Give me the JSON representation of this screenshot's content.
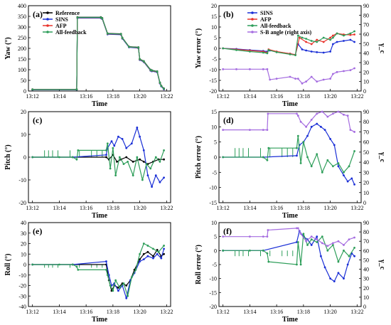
{
  "colors": {
    "Reference": "#000000",
    "SINS": "#1a2fd6",
    "AFP": "#e8322b",
    "All-feedback": "#2e9e5a",
    "S-B angle (right axis)": "#a56de0"
  },
  "chart_data": [
    {
      "type": "line",
      "label": "(a)",
      "ylabel": "Yaw (°)",
      "xlabel": "Time",
      "ylim": [
        0,
        400
      ],
      "yticks": [
        0,
        50,
        100,
        150,
        200,
        250,
        300,
        350,
        400
      ],
      "xticks": [
        "13:12",
        "13:14",
        "13:16",
        "13:18",
        "13:20",
        "13:22"
      ],
      "legend": [
        "Reference",
        "SINS",
        "AFP",
        "All-feedback"
      ],
      "series": [
        {
          "name": "Reference",
          "x": [
            0,
            3.3,
            3.35,
            5.1,
            5.2,
            5.6,
            6.6,
            6.7,
            7.2,
            7.9,
            8.0,
            8.3,
            8.8,
            8.9,
            9.3,
            9.5,
            9.6,
            9.8
          ],
          "y": [
            8,
            8,
            346,
            346,
            342,
            270,
            268,
            250,
            208,
            205,
            150,
            140,
            100,
            97,
            92,
            40,
            25,
            12
          ]
        },
        {
          "name": "SINS",
          "x": [
            0,
            3.3,
            3.35,
            5.1,
            5.2,
            5.6,
            6.6,
            6.7,
            7.2,
            7.9,
            8.0,
            8.3,
            8.8,
            8.9,
            9.3,
            9.5,
            9.6,
            9.8
          ],
          "y": [
            6,
            6,
            342,
            342,
            338,
            266,
            264,
            246,
            205,
            201,
            146,
            136,
            96,
            93,
            88,
            36,
            22,
            8
          ]
        },
        {
          "name": "AFP",
          "x": [
            0,
            3.3,
            3.35,
            5.1,
            5.2,
            5.6,
            6.6,
            6.7,
            7.2,
            7.9,
            8.0,
            8.3,
            8.8,
            8.9,
            9.3,
            9.5,
            9.6,
            9.8
          ],
          "y": [
            7,
            7,
            344,
            344,
            340,
            268,
            266,
            248,
            207,
            203,
            148,
            138,
            98,
            95,
            90,
            38,
            24,
            10
          ]
        },
        {
          "name": "All-feedback",
          "x": [
            0,
            3.3,
            3.35,
            5.1,
            5.2,
            5.6,
            6.6,
            6.7,
            7.2,
            7.9,
            8.0,
            8.3,
            8.8,
            8.9,
            9.3,
            9.5,
            9.6,
            9.8
          ],
          "y": [
            7,
            7,
            345,
            345,
            341,
            269,
            267,
            249,
            207,
            204,
            149,
            139,
            99,
            96,
            91,
            39,
            24,
            11
          ]
        }
      ]
    },
    {
      "type": "line",
      "label": "(b)",
      "ylabel": "Yaw error (°)",
      "y2label": "γ_c",
      "xlabel": "Time",
      "ylim": [
        -20,
        20
      ],
      "yticks": [
        -20,
        -15,
        -10,
        -5,
        0,
        5,
        10,
        15,
        20
      ],
      "y2lim": [
        0,
        90
      ],
      "y2ticks": [
        0,
        10,
        20,
        30,
        40,
        50,
        60,
        70,
        80,
        90
      ],
      "xticks": [
        "13:12",
        "13:14",
        "13:16",
        "13:18",
        "13:20",
        "13:22"
      ],
      "legend": [
        "SINS",
        "AFP",
        "All-feedback",
        "S-B angle (right axis)"
      ],
      "series": [
        {
          "name": "SINS",
          "x": [
            0,
            1,
            2,
            3,
            3.3,
            3.5,
            4,
            5,
            5.4,
            5.6,
            5.9,
            6.2,
            6.6,
            7,
            7.5,
            8,
            8.2,
            8.5,
            9,
            9.5,
            9.8
          ],
          "y": [
            0,
            -0.3,
            -0.8,
            -1.2,
            -1.5,
            -1,
            -1.6,
            -2.5,
            -3,
            2,
            -0.5,
            -1,
            -1.5,
            -1.8,
            -2,
            -1.5,
            2,
            3,
            3.5,
            4,
            3
          ]
        },
        {
          "name": "AFP",
          "x": [
            0,
            1,
            2,
            3,
            3.3,
            3.4,
            4,
            5,
            5.4,
            5.7,
            6.2,
            6.6,
            7,
            7.5,
            8,
            8.2,
            8.5,
            9,
            9.5,
            9.8
          ],
          "y": [
            0,
            -0.5,
            -1,
            -1.5,
            -2,
            -0.5,
            -1.5,
            -2.5,
            -3,
            5,
            3,
            2,
            4,
            3,
            5,
            6,
            7,
            6.5,
            6.3,
            6.5
          ]
        },
        {
          "name": "All-feedback",
          "x": [
            0,
            1,
            2,
            3,
            3.3,
            3.4,
            4,
            5,
            5.4,
            5.6,
            5.9,
            6.2,
            6.6,
            7,
            7.5,
            8,
            8.2,
            8.5,
            9,
            9.5,
            9.8
          ],
          "y": [
            0,
            -0.8,
            -1.5,
            -2,
            -2.3,
            -0.8,
            -1.8,
            -2.8,
            -3.2,
            6,
            5,
            4.5,
            3.5,
            3,
            5,
            4,
            5,
            7,
            6,
            7,
            8
          ]
        },
        {
          "name": "S-B angle (right axis)",
          "axis": "right",
          "x": [
            0,
            1,
            2,
            3,
            3.3,
            3.5,
            4,
            5,
            5.4,
            5.6,
            5.9,
            6.2,
            6.6,
            7,
            7.5,
            8,
            8.2,
            8.5,
            9,
            9.5,
            9.8
          ],
          "y": [
            23,
            23,
            23,
            23,
            23,
            12,
            13,
            15,
            13,
            13,
            8,
            10,
            15,
            10,
            12,
            13,
            18,
            20,
            21,
            22,
            24
          ]
        }
      ]
    },
    {
      "type": "line",
      "label": "(c)",
      "ylabel": "Pitch (°)",
      "xlabel": "Time",
      "ylim": [
        -20,
        20
      ],
      "yticks": [
        -20,
        -10,
        0,
        10,
        20
      ],
      "xticks": [
        "13:12",
        "13:14",
        "13:16",
        "13:18",
        "13:20",
        "13:22"
      ],
      "series": [
        {
          "name": "Reference",
          "x": [
            0,
            3,
            5.5,
            5.7,
            6,
            6.3,
            6.6,
            7,
            7.5,
            8,
            8.3,
            8.6,
            9,
            9.4,
            9.8
          ],
          "y": [
            0,
            0,
            0,
            -1,
            1,
            -2,
            -1,
            0,
            -2,
            -1,
            -2,
            -3,
            -2,
            -1,
            -1
          ]
        },
        {
          "name": "SINS",
          "x": [
            0,
            3,
            5.5,
            5.6,
            5.9,
            6.1,
            6.4,
            6.7,
            7,
            7.4,
            7.8,
            8,
            8.3,
            8.6,
            8.9,
            9.2,
            9.5,
            9.8
          ],
          "y": [
            0,
            0,
            1,
            4,
            7,
            5,
            9,
            8,
            4,
            6,
            13,
            9,
            3,
            -8,
            -13,
            -8,
            -11,
            -9
          ]
        },
        {
          "name": "All-feedback",
          "x": [
            0,
            2,
            3,
            3.3,
            3.4,
            5.5,
            5.6,
            5.8,
            6,
            6.2,
            6.5,
            6.8,
            7.1,
            7.5,
            7.8,
            8.2,
            8.5,
            8.8,
            9.2,
            9.5,
            9.8
          ],
          "y": [
            0,
            0,
            0,
            -1,
            3,
            3,
            6,
            -5,
            4,
            -8,
            0,
            -3,
            -2,
            -8,
            0,
            -10,
            -3,
            -5,
            0,
            -2,
            3
          ]
        }
      ],
      "spikes": {
        "x": [
          0.9,
          1.2,
          1.5,
          1.9,
          2.8,
          3.5,
          4.4,
          4.8,
          5.2
        ],
        "height": [
          3,
          3,
          3,
          3,
          3,
          3,
          3,
          3,
          3
        ]
      }
    },
    {
      "type": "line",
      "label": "(d)",
      "ylabel": "Pitch error (°)",
      "y2label": "γ_c",
      "xlabel": "Time",
      "ylim": [
        -15,
        15
      ],
      "yticks": [
        -15,
        -10,
        -5,
        0,
        5,
        10,
        15
      ],
      "y2lim": [
        0,
        90
      ],
      "y2ticks": [
        0,
        10,
        20,
        30,
        40,
        50,
        60,
        70,
        80,
        90
      ],
      "xticks": [
        "13:12",
        "13:14",
        "13:16",
        "13:18",
        "13:20",
        "13:22"
      ],
      "series": [
        {
          "name": "SINS",
          "x": [
            0,
            3,
            5.5,
            5.7,
            6,
            6.3,
            6.6,
            7,
            7.3,
            7.6,
            8,
            8.3,
            8.6,
            9,
            9.3,
            9.6,
            9.8
          ],
          "y": [
            0,
            0,
            0.5,
            4,
            5,
            7,
            10,
            11,
            10,
            9,
            6,
            4,
            -3,
            -6,
            -8,
            -7,
            -9
          ]
        },
        {
          "name": "All-feedback",
          "x": [
            0,
            3,
            3.3,
            3.4,
            5.5,
            5.6,
            5.8,
            6,
            6.3,
            6.6,
            7,
            7.4,
            7.8,
            8.2,
            8.6,
            9,
            9.4,
            9.8
          ],
          "y": [
            0,
            0,
            -1,
            3,
            3,
            7,
            -2,
            5,
            0,
            -3,
            1,
            -5,
            -1,
            -3,
            -2,
            -5,
            -3,
            2
          ]
        },
        {
          "name": "S-B angle (right axis)",
          "axis": "right",
          "x": [
            0,
            2,
            3,
            3.3,
            3.35,
            5.5,
            5.6,
            5.8,
            6.2,
            6.6,
            7,
            7.4,
            7.8,
            8.2,
            8.6,
            9,
            9.3,
            9.5,
            9.8
          ],
          "y": [
            72,
            72,
            72,
            72,
            88,
            88,
            86,
            80,
            75,
            82,
            88,
            90,
            85,
            88,
            90,
            87,
            86,
            72,
            70
          ]
        }
      ],
      "spikes": {
        "x": [
          0.9,
          1.2,
          1.5,
          1.9,
          2.8,
          3.5,
          4.4,
          4.8,
          5.2
        ],
        "height": [
          3,
          3,
          3,
          3,
          3,
          3,
          3,
          3,
          3
        ]
      }
    },
    {
      "type": "line",
      "label": "(e)",
      "ylabel": "Roll (°)",
      "xlabel": "Time",
      "ylim": [
        -40,
        40
      ],
      "yticks": [
        -40,
        -30,
        -20,
        -10,
        0,
        10,
        20,
        30,
        40
      ],
      "xticks": [
        "13:12",
        "13:14",
        "13:16",
        "13:18",
        "13:20",
        "13:22"
      ],
      "series": [
        {
          "name": "Reference",
          "x": [
            0,
            3,
            5.5,
            5.7,
            5.9,
            6.1,
            6.4,
            6.7,
            7,
            7.3,
            7.6,
            8,
            8.3,
            8.6,
            9,
            9.3,
            9.6,
            9.8
          ],
          "y": [
            0,
            0,
            0,
            -15,
            -25,
            -20,
            -22,
            -18,
            -20,
            -15,
            -5,
            5,
            10,
            12,
            8,
            14,
            8,
            10
          ]
        },
        {
          "name": "SINS",
          "x": [
            0,
            3,
            5.5,
            5.7,
            5.9,
            6.1,
            6.4,
            6.7,
            7,
            7.3,
            7.6,
            8,
            8.3,
            8.6,
            9,
            9.3,
            9.6,
            9.8
          ],
          "y": [
            0,
            0,
            3,
            -10,
            -20,
            -18,
            -25,
            -20,
            -32,
            -15,
            -8,
            3,
            5,
            8,
            6,
            10,
            6,
            15
          ]
        },
        {
          "name": "All-feedback",
          "x": [
            0,
            2,
            3,
            3.3,
            3.4,
            5.5,
            5.6,
            5.8,
            6,
            6.2,
            6.5,
            6.8,
            7.1,
            7.4,
            7.7,
            8,
            8.3,
            8.6,
            9,
            9.4,
            9.8
          ],
          "y": [
            0,
            0,
            0,
            -2,
            -5,
            -5,
            -10,
            -20,
            -25,
            -15,
            -22,
            -18,
            -30,
            -12,
            -5,
            10,
            20,
            18,
            15,
            12,
            18
          ]
        }
      ],
      "spikes": {
        "x": [
          0.9,
          1.2,
          1.5,
          1.9,
          2.8,
          3.5,
          4.4,
          4.8,
          5.2
        ],
        "height": [
          -3,
          -3,
          -3,
          -3,
          -3,
          -3,
          -3,
          -3,
          -3
        ]
      }
    },
    {
      "type": "line",
      "label": "(f)",
      "ylabel": "Roll error (°)",
      "y2label": "γ_c",
      "xlabel": "Time",
      "ylim": [
        -20,
        10
      ],
      "yticks": [
        -20,
        -15,
        -10,
        -5,
        0,
        5,
        10
      ],
      "y2lim": [
        0,
        90
      ],
      "y2ticks": [
        0,
        10,
        20,
        30,
        40,
        50,
        60,
        70,
        80,
        90
      ],
      "xticks": [
        "13:12",
        "13:14",
        "13:16",
        "13:18",
        "13:20",
        "13:22"
      ],
      "series": [
        {
          "name": "SINS",
          "x": [
            0,
            3,
            5.5,
            5.7,
            6,
            6.3,
            6.6,
            7,
            7.3,
            7.6,
            8,
            8.3,
            8.6,
            9,
            9.3,
            9.6,
            9.8
          ],
          "y": [
            0,
            0,
            3,
            7,
            5,
            4,
            2,
            5,
            -2,
            -6,
            -10,
            -11,
            -8,
            -10,
            -5,
            -1,
            -2
          ]
        },
        {
          "name": "All-feedback",
          "x": [
            0,
            2,
            3,
            3.3,
            3.4,
            5.5,
            5.6,
            5.8,
            6,
            6.3,
            6.6,
            7,
            7.4,
            7.8,
            8.2,
            8.6,
            9,
            9.4,
            9.8
          ],
          "y": [
            0,
            0,
            0,
            -1,
            -4,
            -5,
            3,
            -5,
            6,
            2,
            4,
            3,
            5,
            0,
            2,
            -4,
            0,
            -2,
            1
          ]
        },
        {
          "name": "S-B angle (right axis)",
          "axis": "right",
          "x": [
            0,
            2,
            3,
            3.3,
            3.35,
            5.5,
            5.6,
            5.8,
            6.2,
            6.6,
            7,
            7.4,
            7.8,
            8.2,
            8.6,
            9,
            9.4,
            9.8
          ],
          "y": [
            75,
            75,
            75,
            75,
            82,
            84,
            84,
            78,
            70,
            75,
            72,
            68,
            65,
            68,
            70,
            66,
            72,
            74
          ]
        }
      ],
      "spikes": {
        "x": [
          0.9,
          1.2,
          1.5,
          1.9,
          2.8,
          3.5,
          4.4,
          4.8,
          5.2
        ],
        "height": [
          -2,
          -2,
          -2,
          -2,
          -2,
          -2,
          -2,
          -2,
          -2
        ]
      }
    }
  ]
}
